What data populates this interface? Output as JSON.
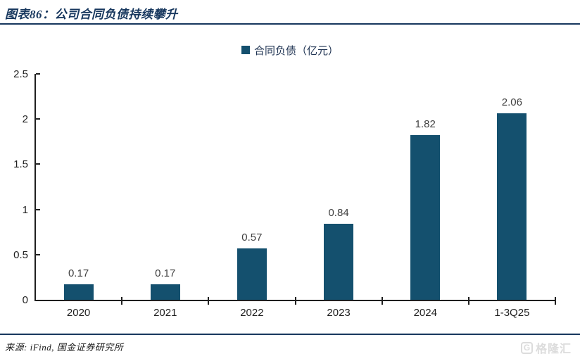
{
  "header": {
    "title": "图表86：公司合同负债持续攀升"
  },
  "legend": {
    "label": "合同负债（亿元）"
  },
  "chart_data": {
    "type": "bar",
    "title": "合同负债（亿元）",
    "categories": [
      "2020",
      "2021",
      "2022",
      "2023",
      "2024",
      "1-3Q25"
    ],
    "values": [
      0.17,
      0.17,
      0.57,
      0.84,
      1.82,
      2.06
    ],
    "data_labels": [
      "0.17",
      "0.17",
      "0.57",
      "0.84",
      "1.82",
      "2.06"
    ],
    "xlabel": "",
    "ylabel": "",
    "ylim": [
      0,
      2.5
    ],
    "ytick_labels": [
      "0",
      "0.5",
      "1",
      "1.5",
      "2",
      "2.5"
    ],
    "grid": false,
    "legend_position": "top",
    "bar_color": "#14506E",
    "axis_color": "#1f1f1f",
    "label_color": "#404040"
  },
  "footer": {
    "source": "来源: iFind, 国金证券研究所",
    "watermark_icon": "G",
    "watermark": "格隆汇"
  }
}
